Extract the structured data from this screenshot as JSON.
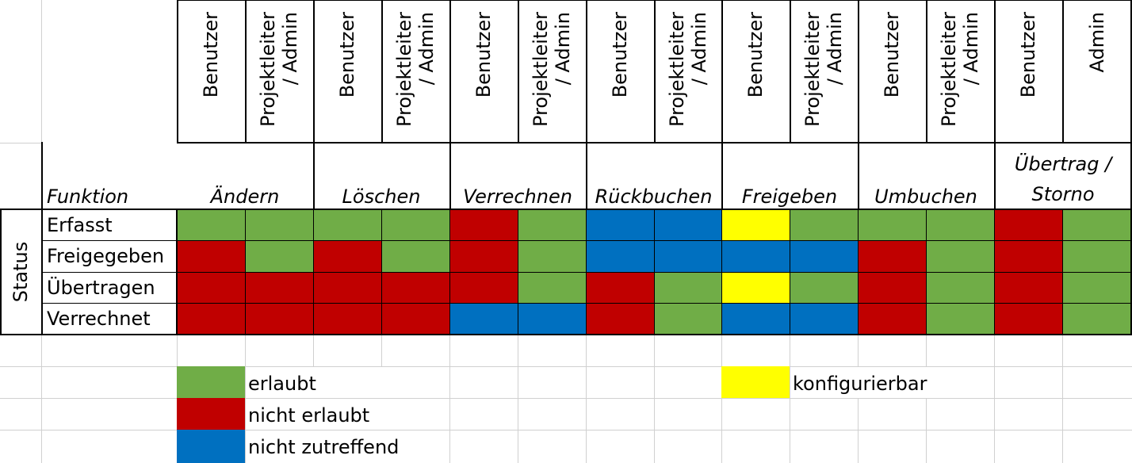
{
  "colors": {
    "allowed": "#70ad47",
    "not_allowed": "#c00000",
    "not_applicable": "#0070c0",
    "configurable": "#ffff00",
    "gridline": "#d0d0d0",
    "border": "#000000"
  },
  "roles": [
    "Benutzer",
    "Projektleiter / Admin",
    "Benutzer",
    "Projektleiter / Admin",
    "Benutzer",
    "Projektleiter / Admin",
    "Benutzer",
    "Projektleiter / Admin",
    "Benutzer",
    "Projektleiter / Admin",
    "Benutzer",
    "Projektleiter / Admin",
    "Benutzer",
    "Admin"
  ],
  "function_header": "Funktion",
  "functions": [
    "Ändern",
    "Löschen",
    "Verrechnen",
    "Rückbuchen",
    "Freigeben",
    "Umbuchen",
    "Übertrag / Storno"
  ],
  "status_header": "Status",
  "statuses": [
    "Erfasst",
    "Freigegeben",
    "Übertragen",
    "Verrechnet"
  ],
  "matrix": [
    [
      "allowed",
      "allowed",
      "allowed",
      "allowed",
      "not_allowed",
      "allowed",
      "not_applicable",
      "not_applicable",
      "configurable",
      "allowed",
      "allowed",
      "allowed",
      "not_allowed",
      "allowed"
    ],
    [
      "not_allowed",
      "allowed",
      "not_allowed",
      "allowed",
      "not_allowed",
      "allowed",
      "not_applicable",
      "not_applicable",
      "not_applicable",
      "not_applicable",
      "not_allowed",
      "allowed",
      "not_allowed",
      "allowed"
    ],
    [
      "not_allowed",
      "not_allowed",
      "not_allowed",
      "not_allowed",
      "not_allowed",
      "allowed",
      "not_allowed",
      "allowed",
      "configurable",
      "allowed",
      "not_allowed",
      "allowed",
      "not_allowed",
      "allowed"
    ],
    [
      "not_allowed",
      "not_allowed",
      "not_allowed",
      "not_allowed",
      "not_applicable",
      "not_applicable",
      "not_allowed",
      "allowed",
      "not_applicable",
      "not_applicable",
      "not_allowed",
      "allowed",
      "not_allowed",
      "allowed"
    ]
  ],
  "legend": {
    "allowed": "erlaubt",
    "not_allowed": "nicht erlaubt",
    "not_applicable": "nicht zutreffend",
    "configurable": "konfigurierbar"
  }
}
